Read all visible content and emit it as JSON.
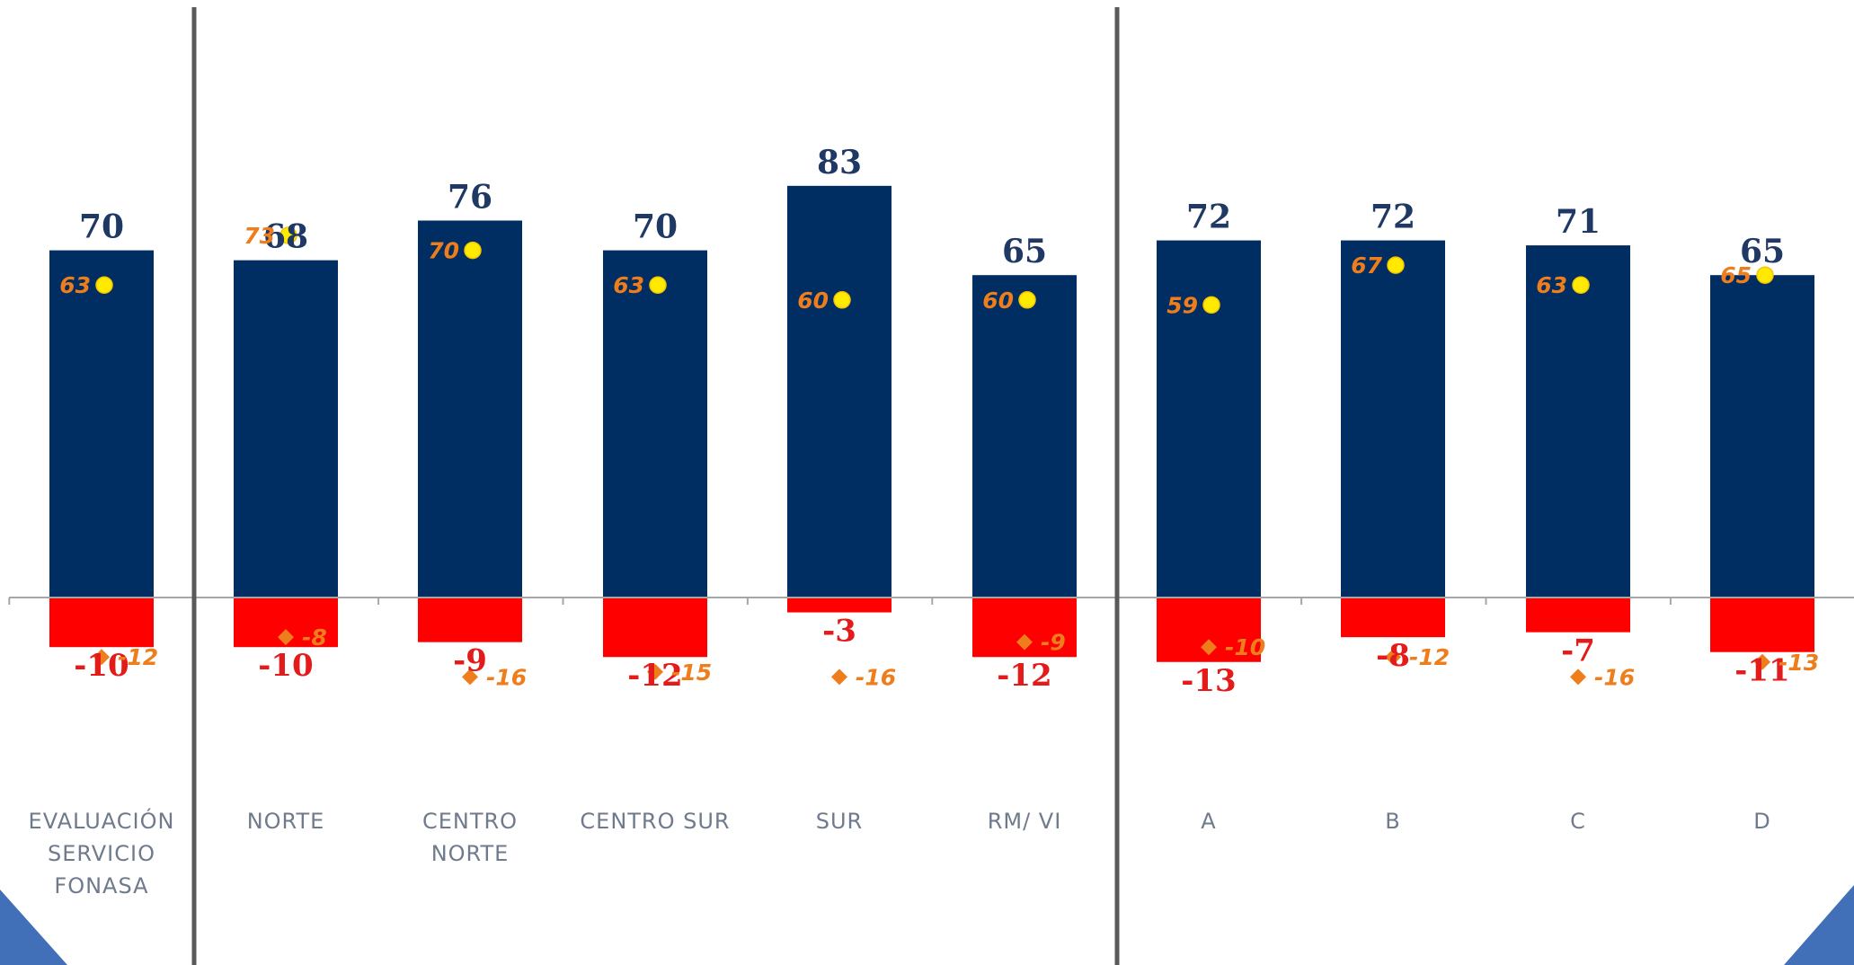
{
  "chart_data": {
    "type": "bar",
    "categories": [
      [
        "EVALUACIÓN",
        "SERVICIO",
        "FONASA"
      ],
      [
        "NORTE"
      ],
      [
        "CENTRO",
        "NORTE"
      ],
      [
        "CENTRO SUR"
      ],
      [
        "SUR"
      ],
      [
        "RM/ VI"
      ],
      [
        "A"
      ],
      [
        "B"
      ],
      [
        "C"
      ],
      [
        "D"
      ]
    ],
    "series": [
      {
        "values": [
          70,
          68,
          76,
          70,
          83,
          65,
          72,
          72,
          71,
          65
        ],
        "color": "#002d62",
        "marker": "bar"
      },
      {
        "values": [
          -10,
          -10,
          -9,
          -12,
          -3,
          -12,
          -13,
          -8,
          -7,
          -11
        ],
        "color": "#ff0000",
        "marker": "bar"
      },
      {
        "values": [
          63,
          73,
          70,
          63,
          60,
          60,
          59,
          67,
          63,
          65
        ],
        "color": "#ffea00",
        "marker": "circle"
      },
      {
        "values": [
          -12,
          -8,
          -16,
          -15,
          -16,
          -9,
          -10,
          -12,
          -16,
          -13
        ],
        "color": "#ee7d1c",
        "marker": "diamond"
      }
    ],
    "group_separators_after": [
      0,
      5
    ],
    "colors": {
      "text_positive": "#1f3864",
      "text_negative": "#e31b1b",
      "text_marker": "#ee7d1c",
      "axis": "#a6a6a6",
      "separator": "#595959",
      "corner": "#4170b8"
    }
  }
}
